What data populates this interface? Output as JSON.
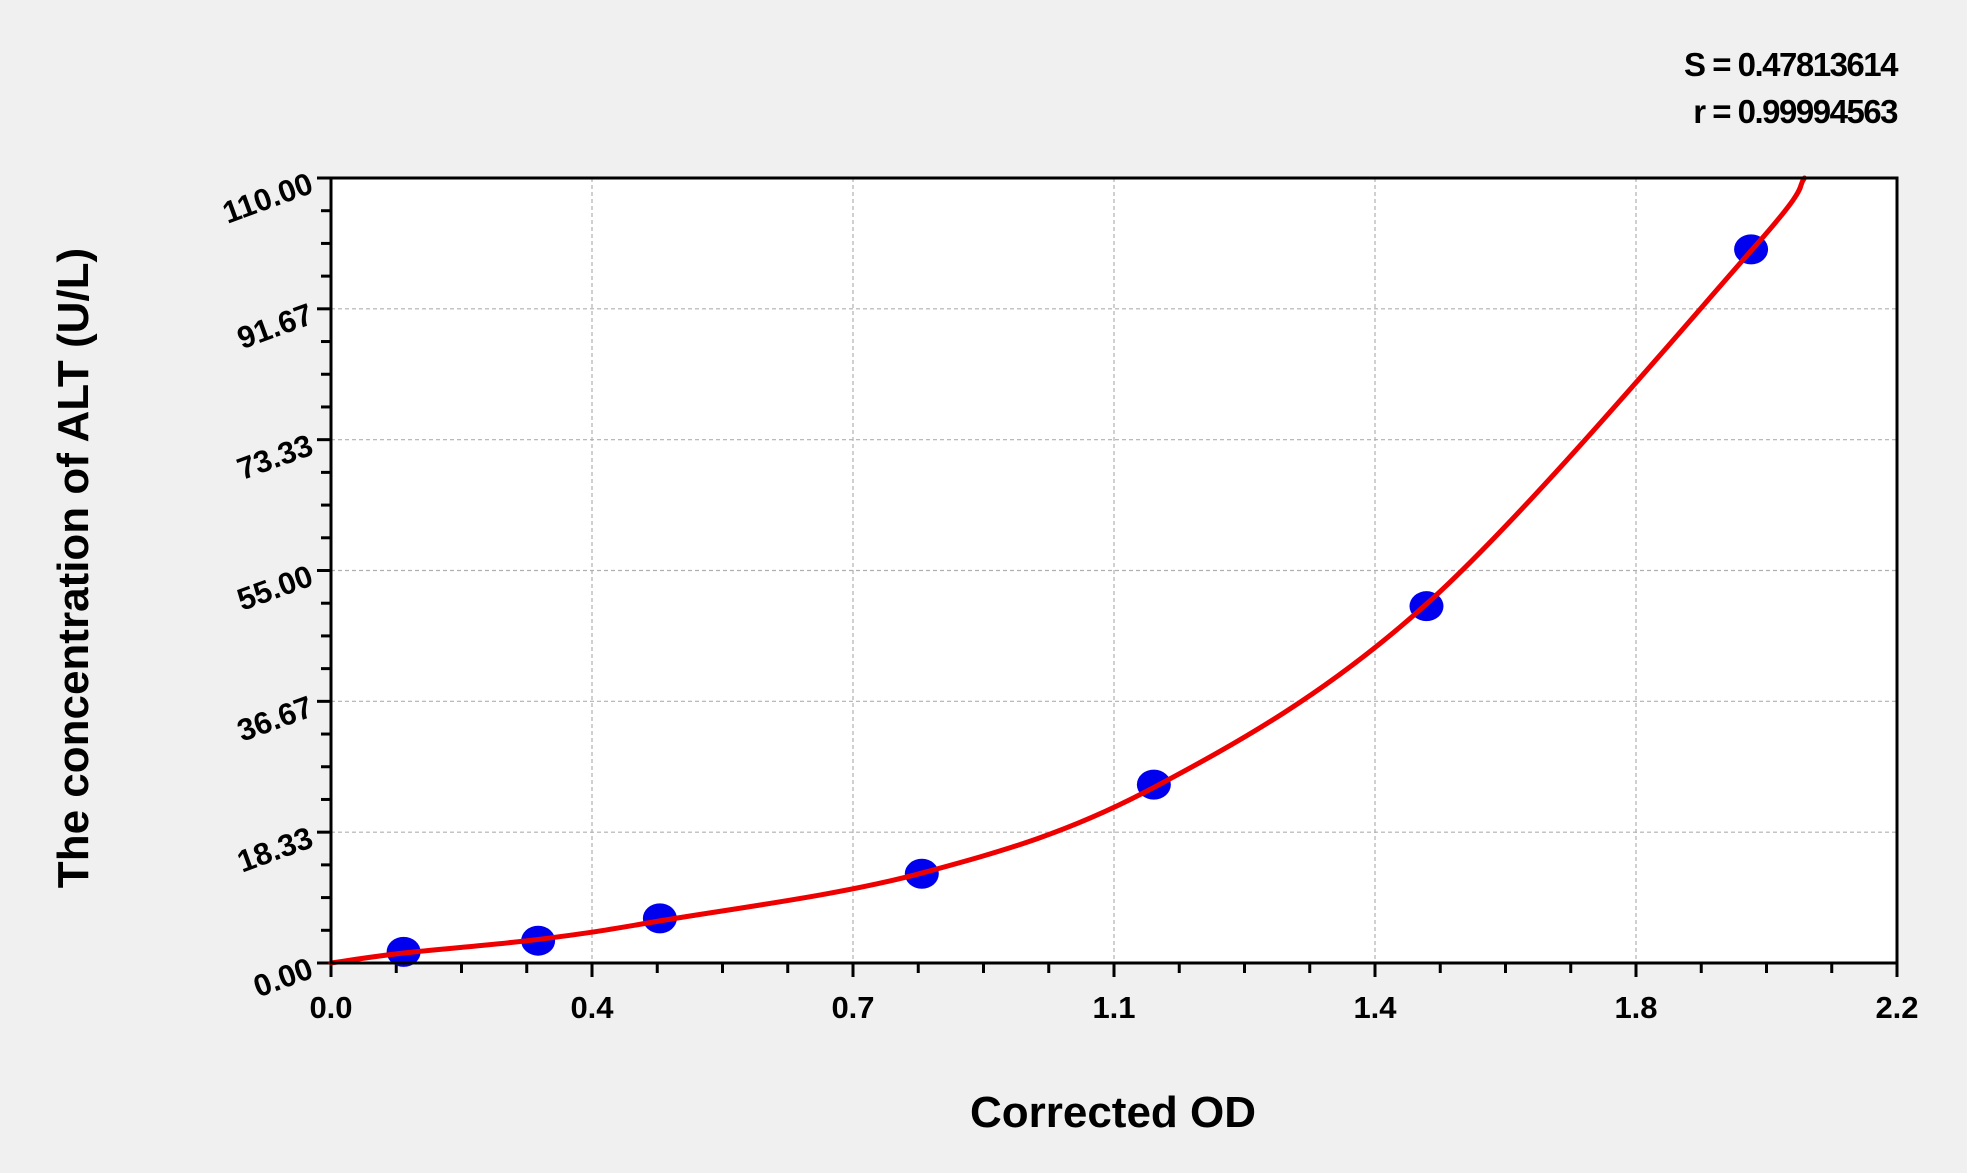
{
  "chart_data": {
    "type": "scatter",
    "title": "",
    "xlabel": "Corrected OD",
    "ylabel": "The concentration of ALT (U/L)",
    "xlim": [
      0,
      2.2
    ],
    "ylim": [
      0,
      110
    ],
    "x_tick_labels": [
      "0.0",
      "0.4",
      "0.7",
      "1.1",
      "1.4",
      "1.8",
      "2.2"
    ],
    "y_tick_labels": [
      "0.00",
      "18.33",
      "36.67",
      "55.00",
      "73.33",
      "91.67",
      "110.00"
    ],
    "grid": true,
    "stats": {
      "s_label": "S = 0.47813614",
      "r_label": "r = 0.99994563"
    },
    "series": [
      {
        "kind": "points",
        "color": "#0000ee",
        "x": [
          0.102,
          0.291,
          0.462,
          0.83,
          1.156,
          1.539,
          1.995
        ],
        "y": [
          1.5625,
          3.125,
          6.25,
          12.5,
          25,
          50,
          100
        ]
      },
      {
        "kind": "fit-curve",
        "color": "#ee0000",
        "x": [
          0,
          0.102,
          0.291,
          0.462,
          0.83,
          1.156,
          1.539,
          1.995,
          2.07
        ],
        "y": [
          0,
          1.4,
          3.3,
          5.9,
          12.6,
          24.6,
          50.3,
          99.8,
          110
        ]
      }
    ]
  }
}
